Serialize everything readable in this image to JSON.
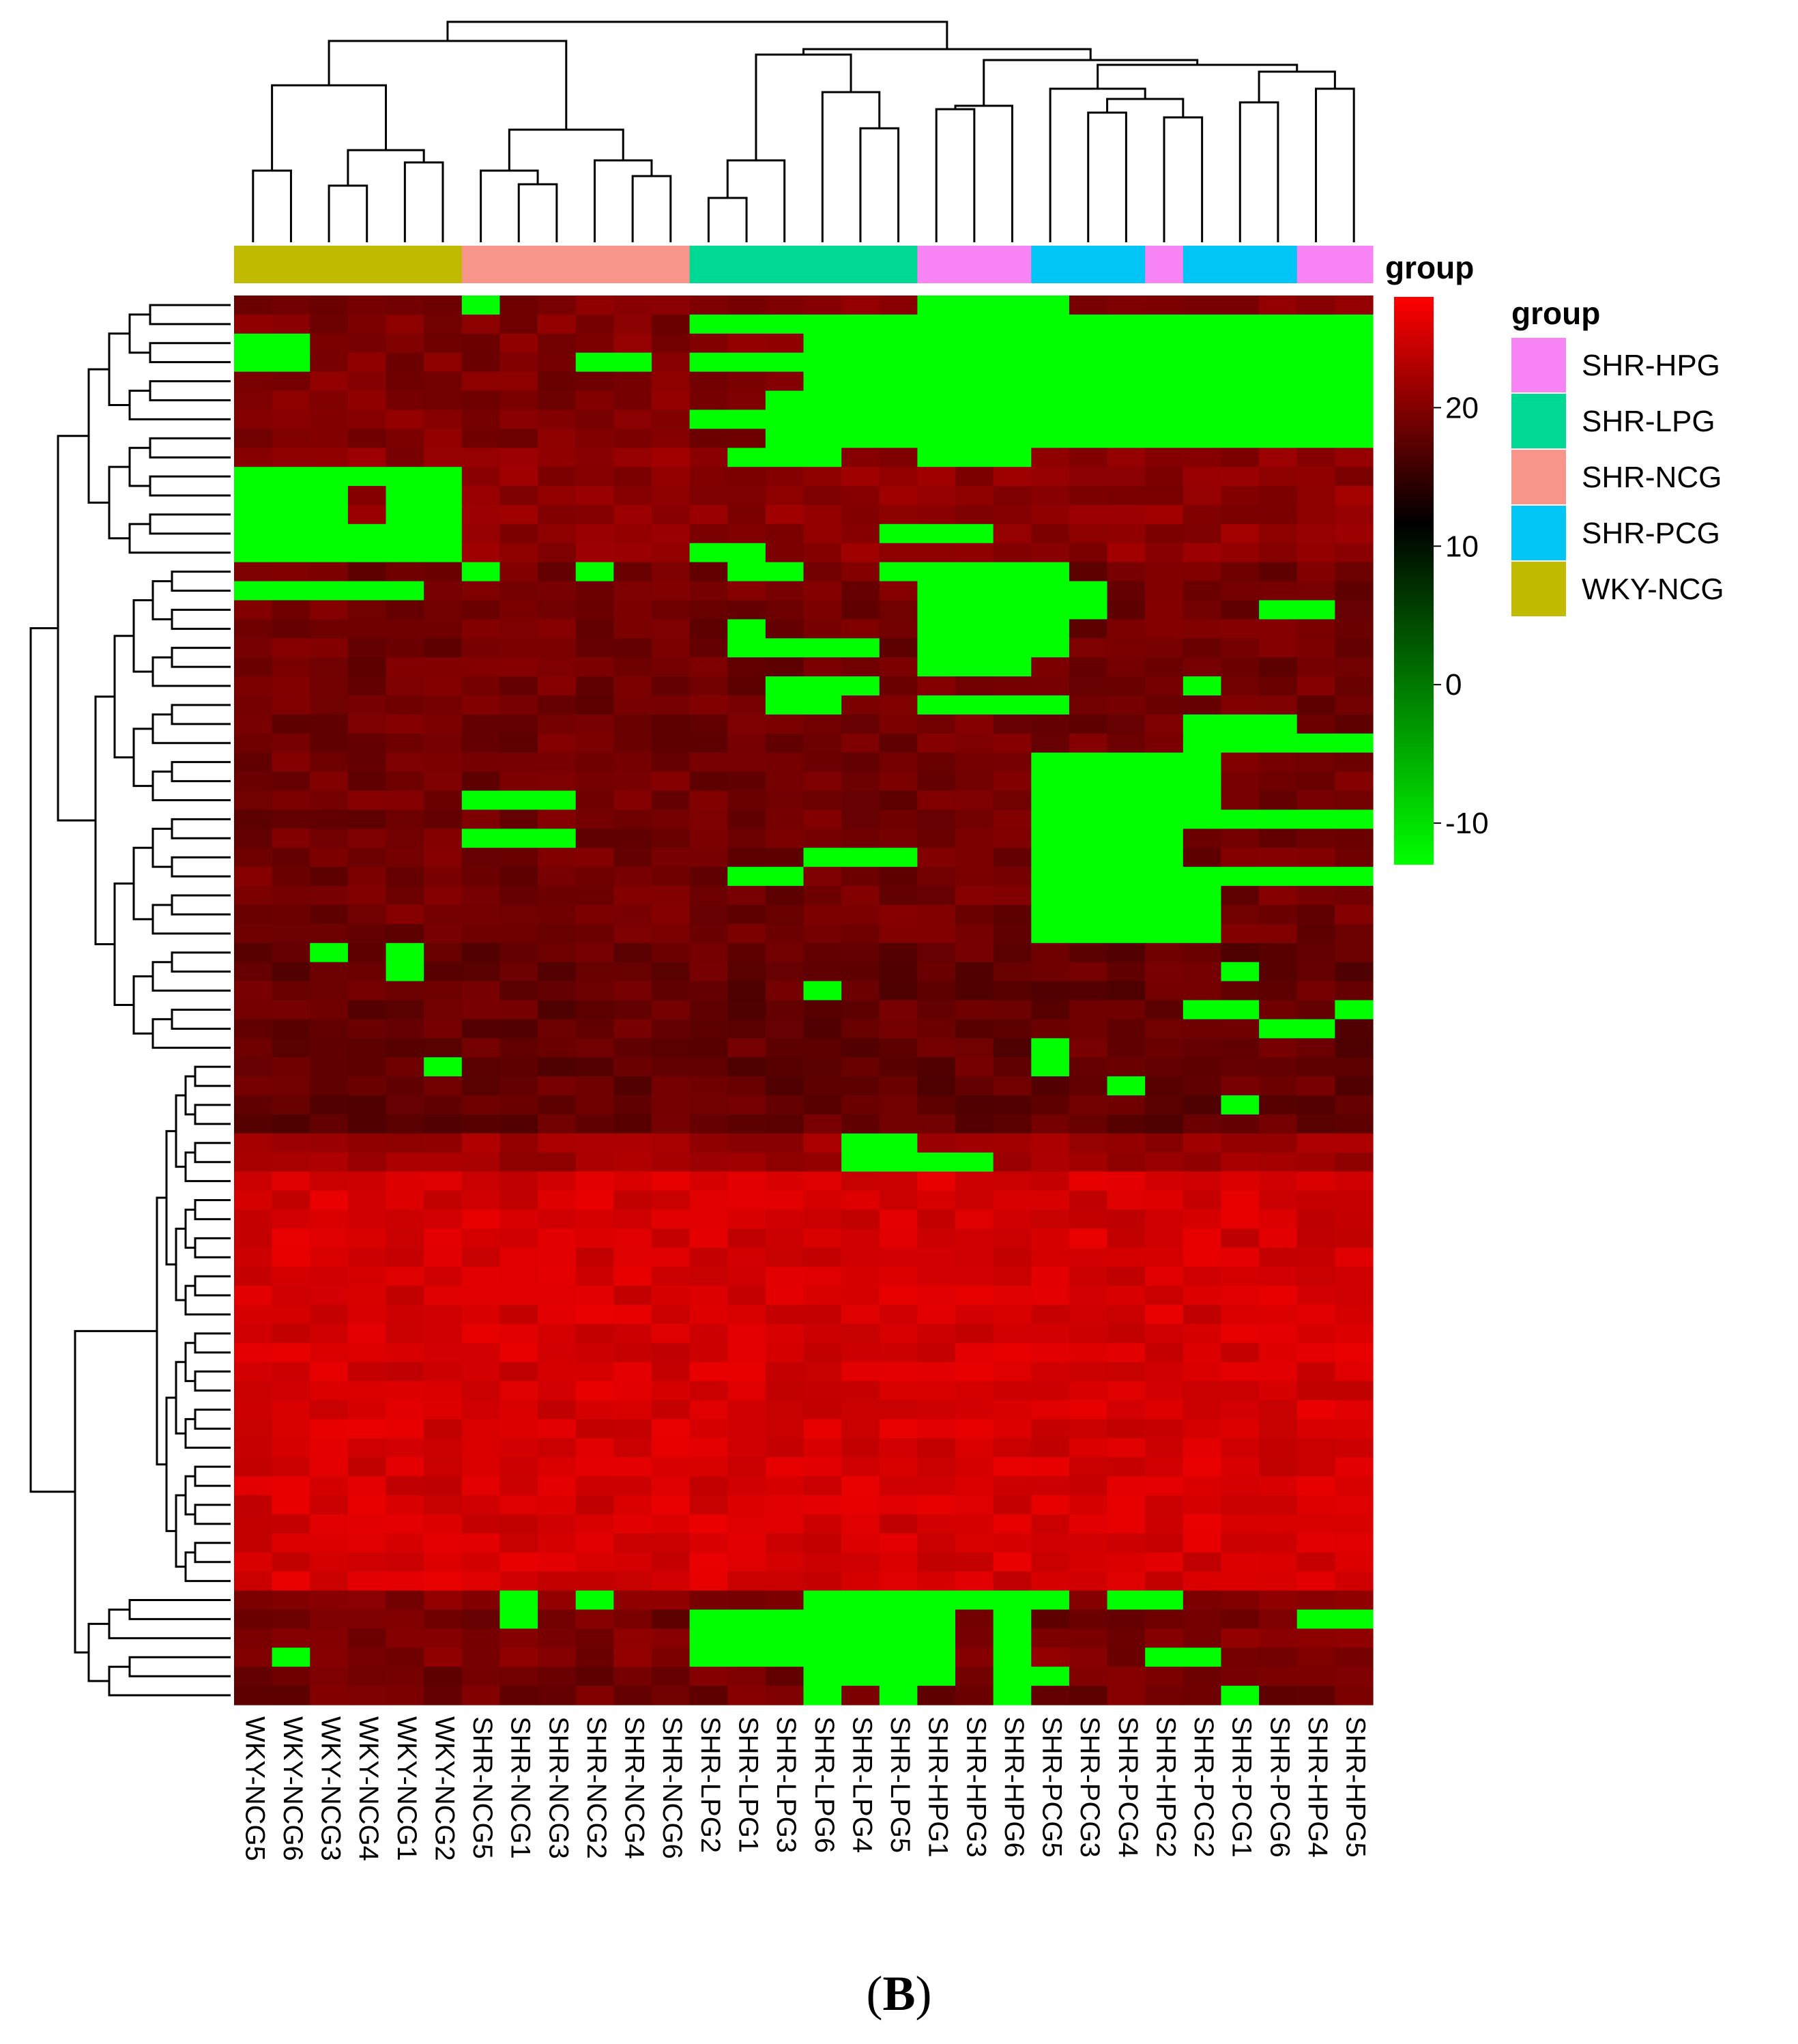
{
  "chart_data": {
    "type": "heatmap",
    "title": "",
    "annotation_title": "group",
    "columns": [
      "WKY-NCG5",
      "WKY-NCG6",
      "WKY-NCG3",
      "WKY-NCG4",
      "WKY-NCG1",
      "WKY-NCG2",
      "SHR-NCG5",
      "SHR-NCG1",
      "SHR-NCG3",
      "SHR-NCG2",
      "SHR-NCG4",
      "SHR-NCG6",
      "SHR-LPG2",
      "SHR-LPG1",
      "SHR-LPG3",
      "SHR-LPG6",
      "SHR-LPG4",
      "SHR-LPG5",
      "SHR-HPG1",
      "SHR-HPG3",
      "SHR-HPG6",
      "SHR-PCG5",
      "SHR-PCG3",
      "SHR-PCG4",
      "SHR-HPG2",
      "SHR-PCG2",
      "SHR-PCG1",
      "SHR-PCG6",
      "SHR-HPG4",
      "SHR-HPG5"
    ],
    "column_groups": [
      "WKY-NCG",
      "WKY-NCG",
      "WKY-NCG",
      "WKY-NCG",
      "WKY-NCG",
      "WKY-NCG",
      "SHR-NCG",
      "SHR-NCG",
      "SHR-NCG",
      "SHR-NCG",
      "SHR-NCG",
      "SHR-NCG",
      "SHR-LPG",
      "SHR-LPG",
      "SHR-LPG",
      "SHR-LPG",
      "SHR-LPG",
      "SHR-LPG",
      "SHR-HPG",
      "SHR-HPG",
      "SHR-HPG",
      "SHR-PCG",
      "SHR-PCG",
      "SHR-PCG",
      "SHR-HPG",
      "SHR-PCG",
      "SHR-PCG",
      "SHR-PCG",
      "SHR-HPG",
      "SHR-HPG"
    ],
    "groups": [
      {
        "name": "SHR-HPG",
        "color": "#f783f5"
      },
      {
        "name": "SHR-LPG",
        "color": "#00d894"
      },
      {
        "name": "SHR-NCG",
        "color": "#f7958a"
      },
      {
        "name": "SHR-PCG",
        "color": "#00c5f5"
      },
      {
        "name": "WKY-NCG",
        "color": "#c0bb00"
      }
    ],
    "color_scale": {
      "colors": [
        "#00ff00",
        "#000000",
        "#ff0000"
      ],
      "min": -13,
      "mid": 10,
      "max": 28,
      "ticks": [
        20,
        10,
        0,
        -10
      ]
    },
    "n_rows": 74,
    "green_value": -13,
    "row_bands": [
      {
        "rows": 8,
        "base": 19,
        "green": [
          [
            0,
            6,
            6
          ],
          [
            0,
            18,
            21
          ],
          [
            1,
            12,
            29
          ],
          [
            2,
            0,
            1
          ],
          [
            2,
            15,
            29
          ],
          [
            3,
            0,
            1
          ],
          [
            3,
            9,
            10
          ],
          [
            3,
            12,
            29
          ],
          [
            4,
            15,
            29
          ],
          [
            5,
            14,
            29
          ],
          [
            6,
            12,
            29
          ],
          [
            7,
            14,
            29
          ]
        ]
      },
      {
        "rows": 6,
        "base": 20,
        "green": [
          [
            0,
            13,
            15
          ],
          [
            0,
            18,
            20
          ],
          [
            1,
            0,
            5
          ],
          [
            2,
            0,
            2
          ],
          [
            2,
            4,
            5
          ],
          [
            3,
            0,
            2
          ],
          [
            3,
            4,
            5
          ],
          [
            4,
            0,
            5
          ],
          [
            4,
            17,
            19
          ],
          [
            5,
            0,
            5
          ],
          [
            5,
            12,
            13
          ]
        ]
      },
      {
        "rows": 20,
        "base": 18,
        "green": [
          [
            0,
            6,
            6
          ],
          [
            0,
            9,
            9
          ],
          [
            0,
            13,
            14
          ],
          [
            0,
            17,
            17
          ],
          [
            0,
            18,
            21
          ],
          [
            1,
            0,
            4
          ],
          [
            1,
            18,
            22
          ],
          [
            2,
            18,
            22
          ],
          [
            2,
            27,
            28
          ],
          [
            3,
            13,
            13
          ],
          [
            3,
            18,
            21
          ],
          [
            4,
            13,
            16
          ],
          [
            4,
            18,
            21
          ],
          [
            5,
            18,
            20
          ],
          [
            6,
            14,
            16
          ],
          [
            6,
            25,
            25
          ],
          [
            7,
            14,
            15
          ],
          [
            7,
            18,
            21
          ],
          [
            8,
            25,
            27
          ],
          [
            9,
            25,
            29
          ],
          [
            10,
            21,
            25
          ],
          [
            11,
            21,
            25
          ],
          [
            11,
            23,
            24
          ],
          [
            12,
            6,
            8
          ],
          [
            12,
            21,
            25
          ],
          [
            13,
            21,
            29
          ],
          [
            14,
            6,
            8
          ],
          [
            14,
            21,
            24
          ],
          [
            15,
            15,
            17
          ],
          [
            15,
            21,
            24
          ],
          [
            16,
            13,
            14
          ],
          [
            16,
            21,
            29
          ],
          [
            17,
            21,
            25
          ],
          [
            18,
            21,
            25
          ],
          [
            19,
            21,
            25
          ]
        ]
      },
      {
        "rows": 10,
        "base": 17,
        "green": [
          [
            0,
            2,
            2
          ],
          [
            0,
            4,
            4
          ],
          [
            1,
            4,
            4
          ],
          [
            1,
            26,
            26
          ],
          [
            2,
            15,
            15
          ],
          [
            3,
            25,
            26
          ],
          [
            3,
            29,
            29
          ],
          [
            4,
            27,
            28
          ],
          [
            5,
            21,
            21
          ],
          [
            6,
            5,
            5
          ],
          [
            6,
            21,
            21
          ],
          [
            7,
            23,
            23
          ],
          [
            8,
            26,
            26
          ]
        ]
      },
      {
        "rows": 2,
        "base": 21,
        "green": [
          [
            0,
            16,
            17
          ],
          [
            1,
            16,
            17
          ],
          [
            1,
            18,
            19
          ]
        ]
      },
      {
        "rows": 28,
        "base": 25,
        "green": []
      }
    ],
    "bottom_rows": [
      {
        "base": 19,
        "green": [
          [
            7,
            7
          ],
          [
            9,
            9
          ],
          [
            15,
            18
          ],
          [
            18,
            20
          ],
          [
            21,
            21
          ],
          [
            23,
            24
          ]
        ]
      },
      {
        "base": 18,
        "green": [
          [
            7,
            7
          ],
          [
            12,
            18
          ],
          [
            20,
            20
          ],
          [
            28,
            29
          ]
        ]
      },
      {
        "base": 19,
        "green": [
          [
            12,
            18
          ],
          [
            20,
            20
          ]
        ]
      },
      {
        "base": 19,
        "green": [
          [
            1,
            1
          ],
          [
            12,
            18
          ],
          [
            20,
            20
          ],
          [
            24,
            25
          ]
        ]
      },
      {
        "base": 18,
        "green": [
          [
            15,
            18
          ],
          [
            20,
            21
          ]
        ]
      },
      {
        "base": 18,
        "green": [
          [
            15,
            15
          ],
          [
            17,
            17
          ],
          [
            20,
            20
          ],
          [
            26,
            26
          ]
        ]
      }
    ],
    "panel_label": "B"
  }
}
